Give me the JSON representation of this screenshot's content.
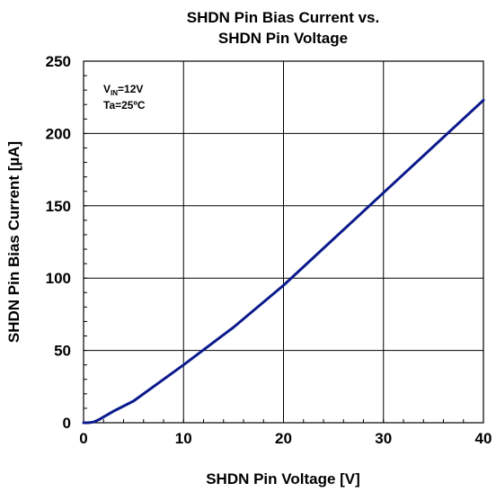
{
  "chart_data": {
    "type": "line",
    "title": [
      "SHDN Pin Bias Current vs.",
      "SHDN Pin Voltage"
    ],
    "xlabel": "SHDN Pin Voltage [V]",
    "ylabel": "SHDN Pin Bias Current [µA]",
    "xlim": [
      0,
      40
    ],
    "ylim": [
      0,
      250
    ],
    "x_ticks": [
      "0",
      "10",
      "20",
      "30",
      "40"
    ],
    "y_ticks": [
      "0",
      "50",
      "100",
      "150",
      "200",
      "250"
    ],
    "grid": true,
    "annotations": {
      "vin_main": "V",
      "vin_sub": "IN",
      "vin_value": "=12V",
      "ta": "Ta=25ºC"
    },
    "series": [
      {
        "color": "#0b1a8c",
        "x": [
          0,
          0.5,
          1.0,
          1.5,
          2,
          3,
          5,
          10,
          15,
          20,
          25,
          30,
          35,
          40
        ],
        "y": [
          0,
          0,
          0.5,
          2,
          4,
          8,
          15,
          40,
          66,
          95,
          127,
          159,
          191,
          223
        ]
      }
    ]
  }
}
